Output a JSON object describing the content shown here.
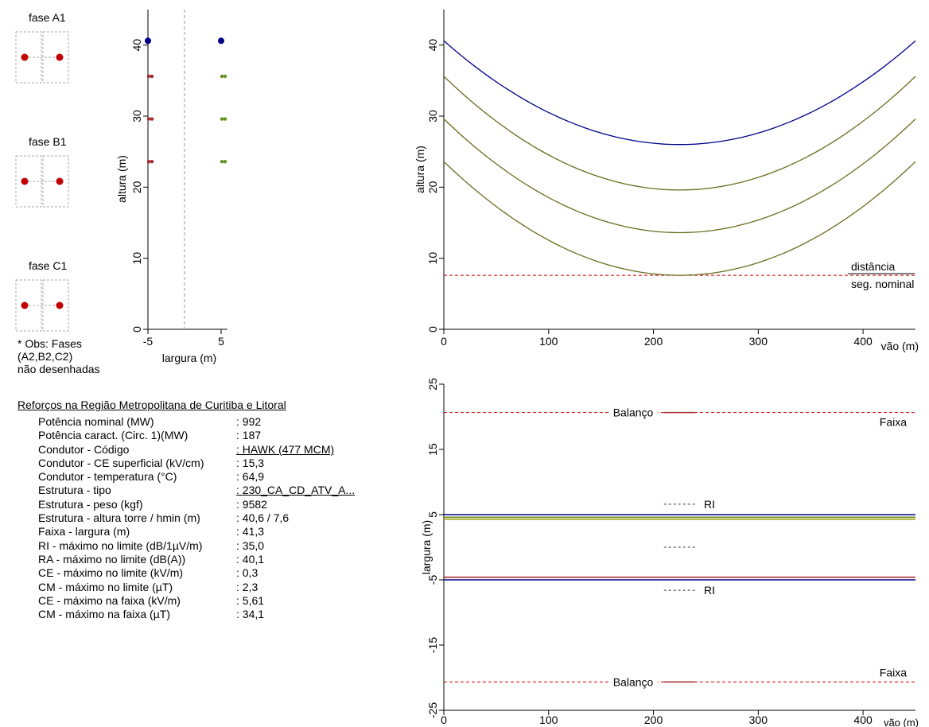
{
  "left_panel": {
    "phases": [
      {
        "label": "fase A1"
      },
      {
        "label": "fase B1"
      },
      {
        "label": "fase C1"
      }
    ],
    "note_lines": [
      "* Obs: Fases",
      "(A2,B2,C2)",
      "não desenhadas"
    ],
    "properties_title": "Reforços na Região Metropolitana de Curitiba e Litoral",
    "properties": [
      {
        "label": "Potência nominal (MW)",
        "value": ": 992"
      },
      {
        "label": "Potência caract. (Circ. 1)(MW)",
        "value": ": 187"
      },
      {
        "label": "Condutor - Código",
        "value": ": HAWK (477 MCM)",
        "link": true
      },
      {
        "label": "Condutor - CE superficial (kV/cm)",
        "value": ": 15,3"
      },
      {
        "label": "Condutor - temperatura (°C)",
        "value": ": 64,9"
      },
      {
        "label": "Estrutura - tipo",
        "value": ": 230_CA_CD_ATV_A...",
        "link": true
      },
      {
        "label": "Estrutura - peso (kgf)",
        "value": ": 9582"
      },
      {
        "label": "Estrutura - altura torre / hmin (m)",
        "value": ": 40,6 / 7,6"
      },
      {
        "label": "Faixa - largura (m)",
        "value": ": 41,3"
      },
      {
        "label": "RI - máximo no limite (dB/1µV/m)",
        "value": ": 35,0"
      },
      {
        "label": "RA - máximo no limite (dB(A))",
        "value": ": 40,1"
      },
      {
        "label": "CE - máximo no limite (kV/m)",
        "value": ": 0,3"
      },
      {
        "label": "CM - máximo no limite (µT)",
        "value": ": 2,3"
      },
      {
        "label": "CE - máximo na faixa (kV/m)",
        "value": ": 5,61"
      },
      {
        "label": "CM - máximo na faixa (µT)",
        "value": ": 34,1"
      }
    ]
  },
  "chart_data": [
    {
      "type": "scatter",
      "name": "tower-cross-section",
      "xlabel": "largura (m)",
      "ylabel": "altura (m)",
      "xlim": [
        -6,
        6
      ],
      "ylim": [
        0,
        45
      ],
      "xticks": [
        -5,
        5
      ],
      "yticks": [
        0,
        10,
        20,
        30,
        40
      ],
      "tick_labels_x": [
        "-5",
        "5"
      ],
      "tick_labels_y": [
        "0",
        "10",
        "20",
        "30",
        "40"
      ],
      "center_line_x": 0,
      "points": [
        {
          "x": -5,
          "y": 40.6,
          "kind": "ground-wire",
          "color": "#00008b"
        },
        {
          "x": 5,
          "y": 40.6,
          "kind": "ground-wire",
          "color": "#00008b"
        },
        {
          "x": -5,
          "y": 35.6,
          "kind": "phase-circuit-1",
          "color": "#a52a2a"
        },
        {
          "x": -5,
          "y": 29.6,
          "kind": "phase-circuit-1",
          "color": "#a52a2a"
        },
        {
          "x": -5,
          "y": 23.6,
          "kind": "phase-circuit-1",
          "color": "#a52a2a"
        },
        {
          "x": 5,
          "y": 35.6,
          "kind": "phase-circuit-2",
          "color": "#6b8e23"
        },
        {
          "x": 5,
          "y": 29.6,
          "kind": "phase-circuit-2",
          "color": "#6b8e23"
        },
        {
          "x": 5,
          "y": 23.6,
          "kind": "phase-circuit-2",
          "color": "#6b8e23"
        }
      ]
    },
    {
      "type": "line",
      "name": "span-profile",
      "xlabel": "vão (m)",
      "ylabel": "altura (m)",
      "xlim": [
        0,
        450
      ],
      "ylim": [
        0,
        45
      ],
      "xticks": [
        0,
        100,
        200,
        300,
        400
      ],
      "yticks": [
        0,
        10,
        20,
        30,
        40
      ],
      "tick_labels_x": [
        "0",
        "100",
        "200",
        "300",
        "400"
      ],
      "tick_labels_y": [
        "0",
        "10",
        "20",
        "30",
        "40"
      ],
      "series": [
        {
          "color": "#00008b",
          "x": [
            0,
            225,
            450
          ],
          "y": [
            40.6,
            26.0,
            40.6
          ]
        },
        {
          "color": "#6b6b1e",
          "x": [
            0,
            225,
            450
          ],
          "y": [
            35.6,
            19.6,
            35.6
          ]
        },
        {
          "color": "#6b6b1e",
          "x": [
            0,
            225,
            450
          ],
          "y": [
            29.6,
            13.6,
            29.6
          ]
        },
        {
          "color": "#6b6b1e",
          "x": [
            0,
            225,
            450
          ],
          "y": [
            23.6,
            7.6,
            23.6
          ]
        }
      ],
      "reference_line": {
        "y": 7.6,
        "color": "#cc0000",
        "style": "dashed",
        "label_lines": [
          "distância",
          "seg. nominal"
        ]
      }
    },
    {
      "type": "line",
      "name": "plan-view",
      "xlabel": "vão (m)",
      "ylabel": "largura (m)",
      "xlim": [
        0,
        450
      ],
      "ylim": [
        -25,
        25
      ],
      "xticks": [
        0,
        100,
        200,
        300,
        400
      ],
      "yticks": [
        -25,
        -15,
        -5,
        5,
        15,
        25
      ],
      "tick_labels_x": [
        "0",
        "100",
        "200",
        "300",
        "400"
      ],
      "tick_labels_y": [
        "-25",
        "-15",
        "-5",
        "5",
        "15",
        "25"
      ],
      "conductor_lines": [
        {
          "y": 5.0,
          "color": "#00008b"
        },
        {
          "y": 4.6,
          "color": "#6b8e23"
        },
        {
          "y": 4.3,
          "color": "#a0a000"
        },
        {
          "y": -4.6,
          "color": "#a52a2a"
        },
        {
          "y": -5.0,
          "color": "#00008b"
        }
      ],
      "faixa_lines": [
        {
          "y": 20.65,
          "label": "Faixa",
          "balanco_label": "Balanço"
        },
        {
          "y": -20.65,
          "label": "Faixa",
          "balanco_label": "Balanço"
        }
      ],
      "balanco_segment_x": [
        210,
        240
      ],
      "ri_markers": [
        {
          "y": 6.6,
          "label": "RI"
        },
        {
          "y": 0.0,
          "label": ""
        },
        {
          "y": -6.6,
          "label": "RI"
        }
      ],
      "marker_x": [
        210,
        240
      ]
    }
  ]
}
